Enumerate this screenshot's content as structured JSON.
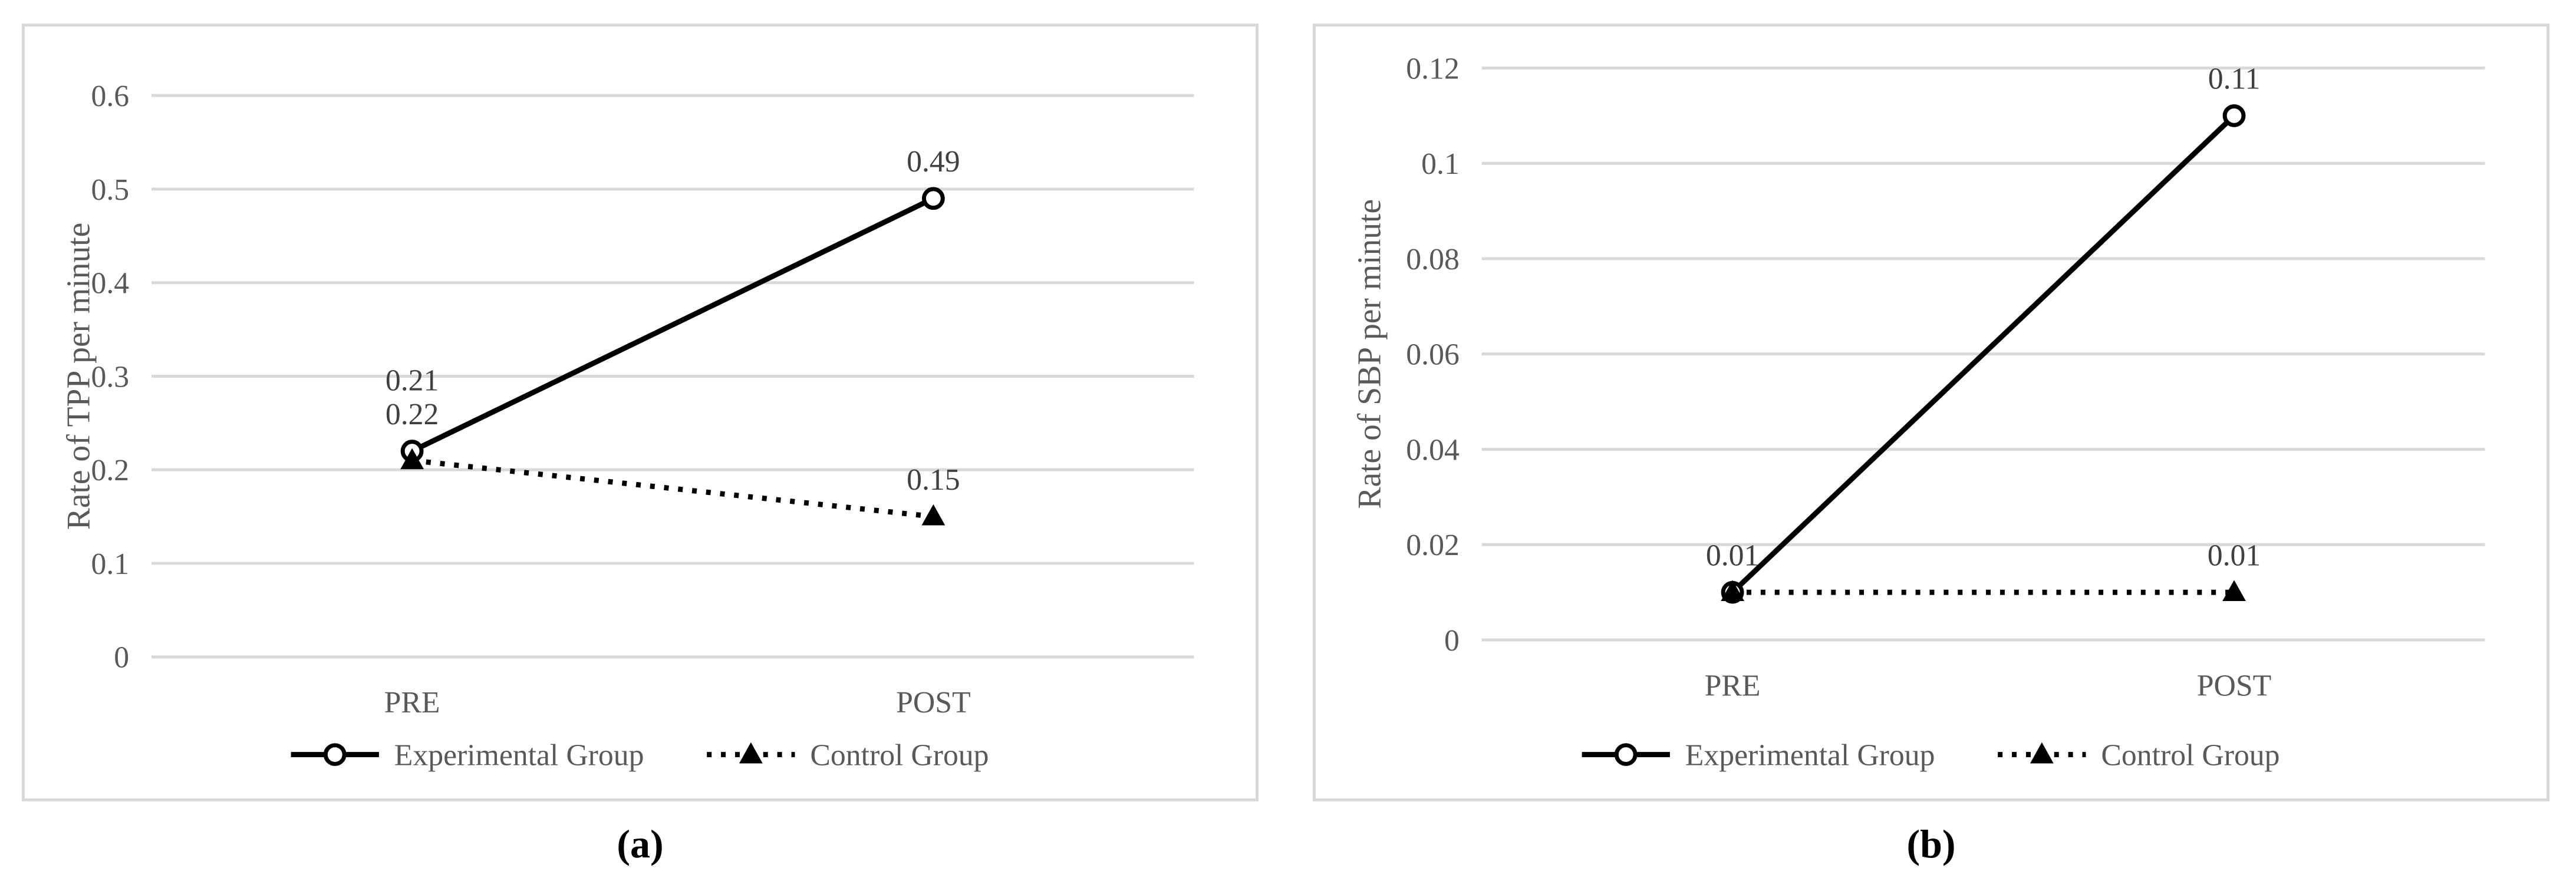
{
  "figure": {
    "panels": [
      {
        "id": "a",
        "caption": "(a)"
      },
      {
        "id": "b",
        "caption": "(b)"
      }
    ]
  },
  "styles": {
    "background": "#ffffff",
    "panel_border_color": "#d9d9d9",
    "grid_color": "#d9d9d9",
    "axis_text_color": "#595959",
    "data_label_color": "#404040",
    "series_color": "#000000",
    "marker_fill_open": "#ffffff",
    "caption_color": "#000000"
  },
  "chart_data": [
    {
      "type": "line",
      "panel": "a",
      "title": "",
      "xlabel": "",
      "ylabel": "Rate of TPP per minute",
      "categories": [
        "PRE",
        "POST"
      ],
      "ylim": [
        0,
        0.6
      ],
      "yticks": [
        "0.6",
        "0.5",
        "0.4",
        "0.3",
        "0.2",
        "0.1",
        "0"
      ],
      "grid": true,
      "legend_position": "bottom",
      "series": [
        {
          "name": "Experimental Group",
          "line_style": "solid",
          "marker": "open-circle",
          "values": [
            0.22,
            0.49
          ],
          "point_labels": [
            {
              "text": "0.22",
              "dy": -46
            },
            {
              "text": "0.49",
              "dy": -46
            }
          ]
        },
        {
          "name": "Control Group",
          "line_style": "dotted",
          "marker": "filled-triangle",
          "values": [
            0.21,
            0.15
          ],
          "point_labels": [
            {
              "text": "0.21",
              "dy": -120
            },
            {
              "text": "0.15",
              "dy": -46
            }
          ]
        }
      ]
    },
    {
      "type": "line",
      "panel": "b",
      "title": "",
      "xlabel": "",
      "ylabel": "Rate of SBP per minute",
      "categories": [
        "PRE",
        "POST"
      ],
      "ylim": [
        0,
        0.12
      ],
      "yticks": [
        "0.12",
        "0.1",
        "0.08",
        "0.06",
        "0.04",
        "0.02",
        "0"
      ],
      "grid": true,
      "legend_position": "bottom",
      "series": [
        {
          "name": "Experimental Group",
          "line_style": "solid",
          "marker": "open-circle",
          "values": [
            0.01,
            0.11
          ],
          "point_labels": [
            {
              "text": "0.01",
              "dy": -46
            },
            {
              "text": "0.11",
              "dy": -46
            }
          ]
        },
        {
          "name": "Control Group",
          "line_style": "dotted",
          "marker": "filled-triangle",
          "values": [
            0.01,
            0.01
          ],
          "point_labels": [
            null,
            {
              "text": "0.01",
              "dy": -46
            }
          ]
        }
      ]
    }
  ]
}
